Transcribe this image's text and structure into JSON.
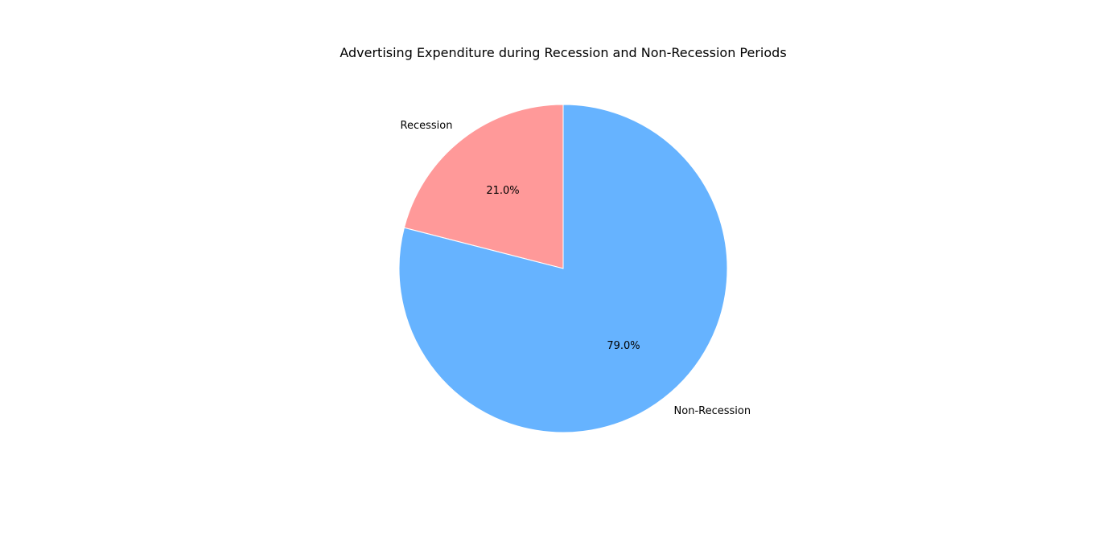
{
  "chart_data": {
    "type": "pie",
    "title": "Advertising Expenditure during Recession and Non-Recession Periods",
    "start_angle_deg": 90,
    "direction": "counterclockwise",
    "slices": [
      {
        "label": "Recession",
        "value": 21.0,
        "pct_label": "21.0%",
        "color": "#ff9999"
      },
      {
        "label": "Non-Recession",
        "value": 79.0,
        "pct_label": "79.0%",
        "color": "#66b3ff"
      }
    ],
    "slice_edge_color": "#ffffff"
  }
}
